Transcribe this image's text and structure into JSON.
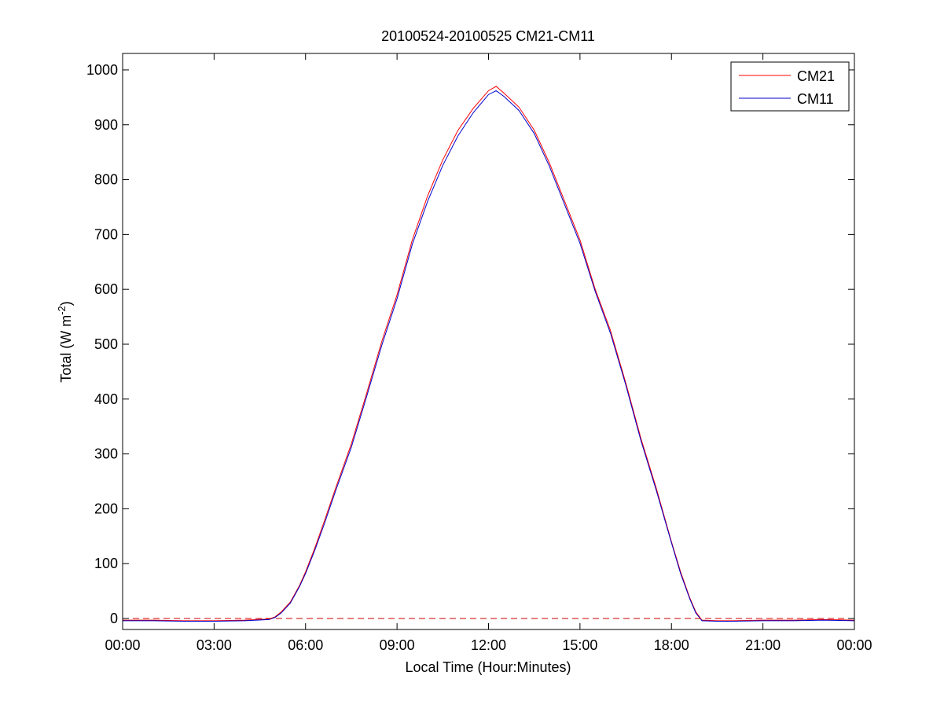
{
  "chart_data": {
    "type": "line",
    "title": "20100524-20100525 CM21-CM11",
    "xlabel": "Local Time (Hour:Minutes)",
    "ylabel_main": "Total (W m",
    "ylabel_sup": "-2",
    "ylabel_close": ")",
    "xlim": [
      0,
      24
    ],
    "ylim": [
      -20,
      1030
    ],
    "grid": false,
    "legend_position": "top-right",
    "x_ticks": [
      0,
      3,
      6,
      9,
      12,
      15,
      18,
      21,
      24
    ],
    "x_tick_labels": [
      "00:00",
      "03:00",
      "06:00",
      "09:00",
      "12:00",
      "15:00",
      "18:00",
      "21:00",
      "00:00"
    ],
    "y_ticks": [
      0,
      100,
      200,
      300,
      400,
      500,
      600,
      700,
      800,
      900,
      1000
    ],
    "y_tick_labels": [
      "0",
      "100",
      "200",
      "300",
      "400",
      "500",
      "600",
      "700",
      "800",
      "900",
      "1000"
    ],
    "reference_line": {
      "y": 0,
      "color": "#cc0000",
      "style": "dashed"
    },
    "series": [
      {
        "name": "CM21",
        "color": "#ff0000",
        "x": [
          0,
          1,
          2,
          3,
          4,
          4.8,
          5.0,
          5.2,
          5.5,
          5.8,
          6.0,
          6.3,
          6.6,
          7.0,
          7.5,
          8.0,
          8.5,
          9.0,
          9.5,
          10.0,
          10.5,
          11.0,
          11.5,
          12.0,
          12.25,
          12.5,
          13.0,
          13.5,
          14.0,
          14.5,
          15.0,
          15.5,
          16.0,
          16.5,
          17.0,
          17.5,
          18.0,
          18.3,
          18.6,
          18.8,
          19.0,
          19.5,
          20,
          21,
          22,
          23,
          24
        ],
        "y": [
          -3,
          -3,
          -4,
          -4,
          -3,
          -1,
          3,
          12,
          30,
          60,
          85,
          128,
          175,
          240,
          318,
          410,
          505,
          590,
          690,
          770,
          836,
          890,
          930,
          962,
          970,
          958,
          932,
          890,
          830,
          760,
          690,
          600,
          525,
          430,
          328,
          238,
          140,
          85,
          38,
          12,
          -3,
          -4,
          -4,
          -3,
          -3,
          -2,
          -3
        ]
      },
      {
        "name": "CM11",
        "color": "#0000cc",
        "x": [
          0,
          1,
          2,
          3,
          4,
          4.8,
          5.0,
          5.2,
          5.5,
          5.8,
          6.0,
          6.3,
          6.6,
          7.0,
          7.5,
          8.0,
          8.5,
          9.0,
          9.5,
          10.0,
          10.5,
          11.0,
          11.5,
          12.0,
          12.25,
          12.5,
          13.0,
          13.5,
          14.0,
          14.5,
          15.0,
          15.5,
          16.0,
          16.5,
          17.0,
          17.5,
          18.0,
          18.3,
          18.6,
          18.8,
          19.0,
          19.5,
          20,
          21,
          22,
          23,
          24
        ],
        "y": [
          -4,
          -4,
          -5,
          -5,
          -4,
          -2,
          2,
          10,
          28,
          58,
          82,
          124,
          170,
          235,
          312,
          404,
          498,
          583,
          682,
          760,
          826,
          880,
          922,
          955,
          962,
          952,
          926,
          884,
          824,
          754,
          684,
          596,
          520,
          426,
          324,
          234,
          138,
          82,
          36,
          10,
          -4,
          -5,
          -5,
          -4,
          -4,
          -3,
          -4
        ]
      }
    ]
  }
}
